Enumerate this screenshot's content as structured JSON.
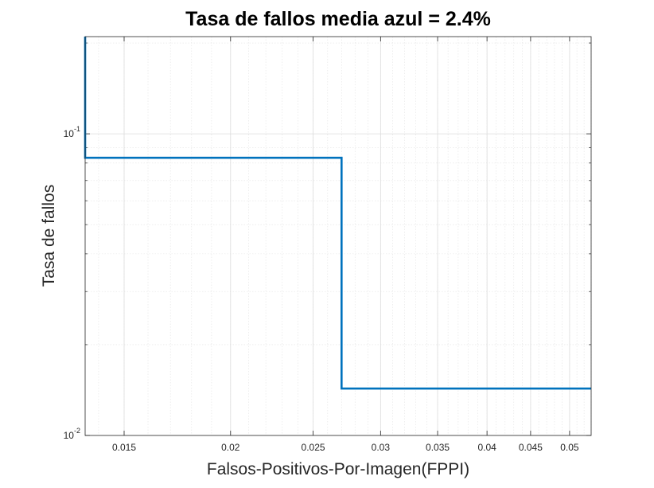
{
  "chart_data": {
    "type": "line",
    "title": "Tasa de fallos media azul = 2.4%",
    "xlabel": "Falsos-Positivos-Por-Imagen(FPPI)",
    "ylabel": "Tasa de fallos",
    "xscale": "log",
    "yscale": "log",
    "xlim": [
      0.0135,
      0.053
    ],
    "ylim": [
      0.01,
      0.21
    ],
    "grid": true,
    "x_ticks": [
      0.015,
      0.02,
      0.025,
      0.03,
      0.035,
      0.04,
      0.045,
      0.05
    ],
    "x_tick_labels": [
      "0.015",
      "0.02",
      "0.025",
      "0.03",
      "0.035",
      "0.04",
      "0.045",
      "0.05"
    ],
    "y_ticks": [
      {
        "value": 0.01,
        "base": "10",
        "exp": "-2"
      },
      {
        "value": 0.1,
        "base": "10",
        "exp": "-1"
      }
    ],
    "series": [
      {
        "color": "#0072bd",
        "x": [
          0.0135,
          0.0135,
          0.027,
          0.027,
          0.053
        ],
        "y": [
          0.21,
          0.0833,
          0.0833,
          0.0143,
          0.0143
        ]
      }
    ]
  }
}
